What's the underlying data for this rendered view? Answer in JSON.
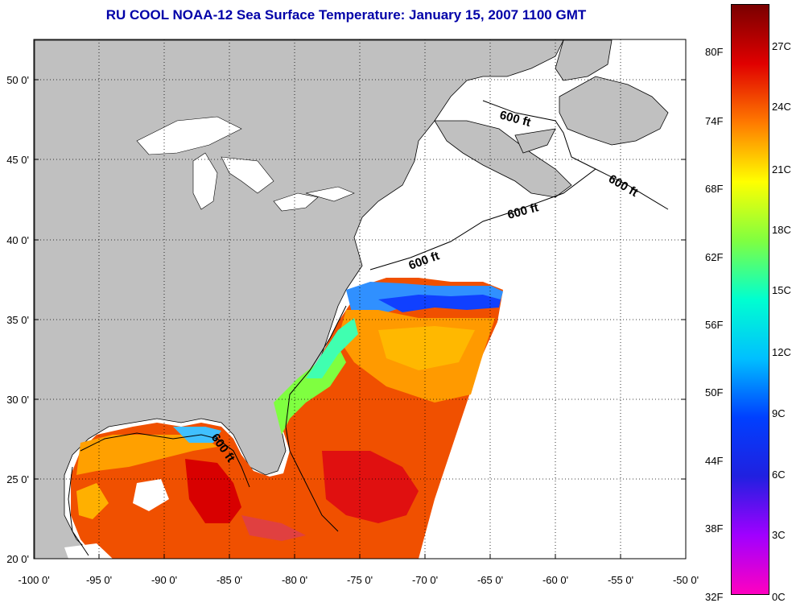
{
  "title": "RU COOL  NOAA-12  Sea Surface Temperature:  January 15, 2007 1100 GMT",
  "map": {
    "lon_ticks": [
      "-100 0'",
      "-95 0'",
      "-90 0'",
      "-85 0'",
      "-80 0'",
      "-75 0'",
      "-70 0'",
      "-65 0'",
      "-60 0'",
      "-55 0'",
      "-50 0'"
    ],
    "lat_ticks": [
      "50 0'",
      "45 0'",
      "40 0'",
      "35 0'",
      "30 0'",
      "25 0'",
      "20 0'"
    ],
    "contour_label": "600 ft",
    "lon_range": [
      -100,
      -50
    ],
    "lat_range": [
      20,
      52.5
    ],
    "land_color": "#c0c0c0",
    "no_data_color": "#ffffff"
  },
  "colorbar": {
    "fahrenheit_labels": [
      "80F",
      "74F",
      "68F",
      "62F",
      "56F",
      "50F",
      "44F",
      "38F",
      "32F"
    ],
    "celsius_labels": [
      "27C",
      "24C",
      "21C",
      "18C",
      "15C",
      "12C",
      "9C",
      "6C",
      "3C",
      "0C"
    ],
    "range_c": [
      0,
      28
    ],
    "colors_top_to_bottom": [
      "#7a0000",
      "#e00000",
      "#ff7a00",
      "#ffff00",
      "#80ff40",
      "#00ffd0",
      "#00c0ff",
      "#0040ff",
      "#2020e0",
      "#a000ff",
      "#ff00c0"
    ]
  }
}
